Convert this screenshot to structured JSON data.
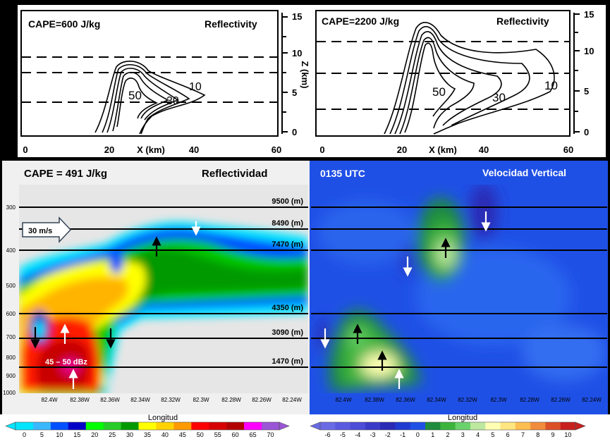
{
  "chart_data": [
    {
      "type": "contour",
      "panel": "top-left",
      "cape_label": "CAPE=600 J/kg",
      "title": "Reflectivity",
      "xlabel": "X (km)",
      "ylabel": "Z (km)",
      "x_ticks": [
        "0",
        "20",
        "40",
        "60"
      ],
      "z_ticks": [
        "0",
        "5",
        "10",
        "15"
      ],
      "xlim": [
        0,
        60
      ],
      "zlim": [
        0,
        15
      ],
      "dashed_levels_km": [
        3.5,
        7,
        9
      ],
      "contour_labels": [
        "50",
        "30",
        "10"
      ]
    },
    {
      "type": "contour",
      "panel": "top-right",
      "cape_label": "CAPE=2200 J/kg",
      "title": "Reflectivity",
      "xlabel": "X (km)",
      "ylabel": "Z (km)",
      "x_ticks": [
        "0",
        "20",
        "40",
        "60"
      ],
      "z_ticks": [
        "0",
        "5",
        "10",
        "15"
      ],
      "xlim": [
        0,
        60
      ],
      "zlim": [
        0,
        15
      ],
      "dashed_levels_km": [
        2.5,
        7,
        11
      ],
      "contour_labels": [
        "50",
        "30",
        "10"
      ]
    },
    {
      "type": "heatmap",
      "panel": "bottom-left",
      "cape_label": "CAPE = 491 J/kg",
      "title": "Reflectividad",
      "pressure_ticks": [
        "300",
        "400",
        "500",
        "600",
        "700",
        "800",
        "900",
        "1000"
      ],
      "lon_ticks": [
        "82.4W",
        "82.38W",
        "82.36W",
        "82.34W",
        "82.32W",
        "82.3W",
        "82.28W",
        "82.26W",
        "82.24W"
      ],
      "levels": [
        {
          "label": "9500 (m)",
          "pressure": 295
        },
        {
          "label": "8490 (m)",
          "pressure": 340
        },
        {
          "label": "7470 (m)",
          "pressure": 385
        },
        {
          "label": "4350 (m)",
          "pressure": 590
        },
        {
          "label": "3090 (m)",
          "pressure": 710
        },
        {
          "label": "1470 (m)",
          "pressure": 840
        }
      ],
      "wind_label": "30 m/s",
      "annotation": "45 – 50 dBz",
      "colorbar": {
        "title": "Longitud",
        "ticks": [
          "0",
          "5",
          "10",
          "15",
          "20",
          "25",
          "30",
          "35",
          "40",
          "45",
          "50",
          "55",
          "60",
          "65",
          "70"
        ],
        "colors": [
          "#00e5ff",
          "#3ab8ff",
          "#0050ff",
          "#0000c8",
          "#00ff00",
          "#28cc28",
          "#009a00",
          "#ffff00",
          "#ffd200",
          "#ff9a00",
          "#ff0000",
          "#d60000",
          "#b20000",
          "#ff00ff",
          "#9a55d6"
        ]
      }
    },
    {
      "type": "heatmap",
      "panel": "bottom-right",
      "time_label": "0135 UTC",
      "title": "Velocidad Vertical",
      "lon_ticks": [
        "82.4W",
        "82.38W",
        "82.36W",
        "82.34W",
        "82.32W",
        "82.3W",
        "82.28W",
        "82.26W",
        "82.24W"
      ],
      "colorbar": {
        "title": "Longitud",
        "ticks": [
          "-6",
          "-5",
          "-4",
          "-3",
          "-2",
          "-1",
          "0",
          "1",
          "2",
          "3",
          "4",
          "5",
          "6",
          "7",
          "8",
          "9",
          "10"
        ],
        "colors": [
          "#6a6ae6",
          "#5a5ae0",
          "#4c4cd8",
          "#3a3ac8",
          "#2a2ab4",
          "#1f3ad0",
          "#1f50e6",
          "#1e8c3c",
          "#3cb43c",
          "#6ad26a",
          "#bde8a0",
          "#ffffb4",
          "#ffe680",
          "#ffbe50",
          "#f08c3c",
          "#dc5028",
          "#c81e1e"
        ]
      }
    }
  ]
}
